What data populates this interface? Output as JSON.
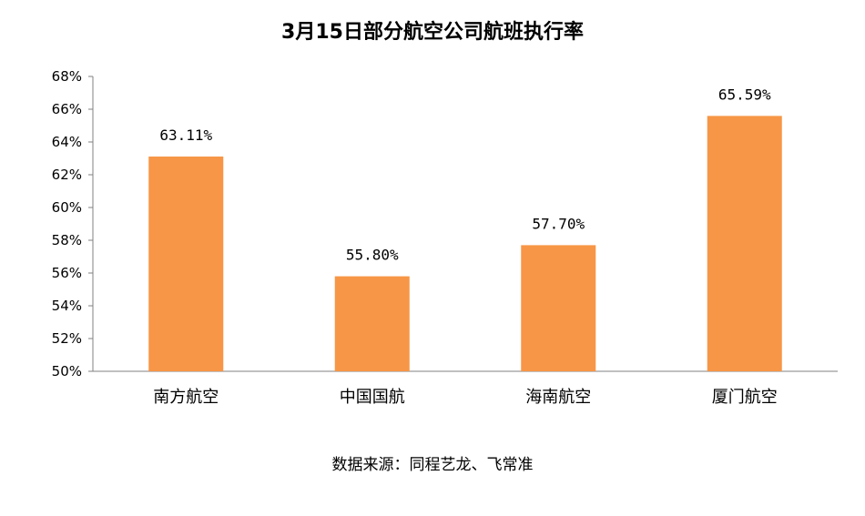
{
  "chart_data": {
    "type": "bar",
    "title": "3月15日部分航空公司航班执行率",
    "categories": [
      "南方航空",
      "中国国航",
      "海南航空",
      "厦门航空"
    ],
    "values": [
      63.11,
      55.8,
      57.7,
      65.59
    ],
    "value_labels": [
      "63.11%",
      "55.80%",
      "57.70%",
      "65.59%"
    ],
    "ylim": [
      50,
      68
    ],
    "y_ticks": [
      50,
      52,
      54,
      56,
      58,
      60,
      62,
      64,
      66,
      68
    ],
    "y_tick_labels": [
      "50%",
      "52%",
      "54%",
      "56%",
      "58%",
      "60%",
      "62%",
      "64%",
      "66%",
      "68%"
    ],
    "bar_color": "#F79646",
    "axis_color": "#808080",
    "grid": false,
    "legend": "none",
    "xlabel": "",
    "ylabel": "",
    "source": "数据来源：同程艺龙、飞常准"
  }
}
